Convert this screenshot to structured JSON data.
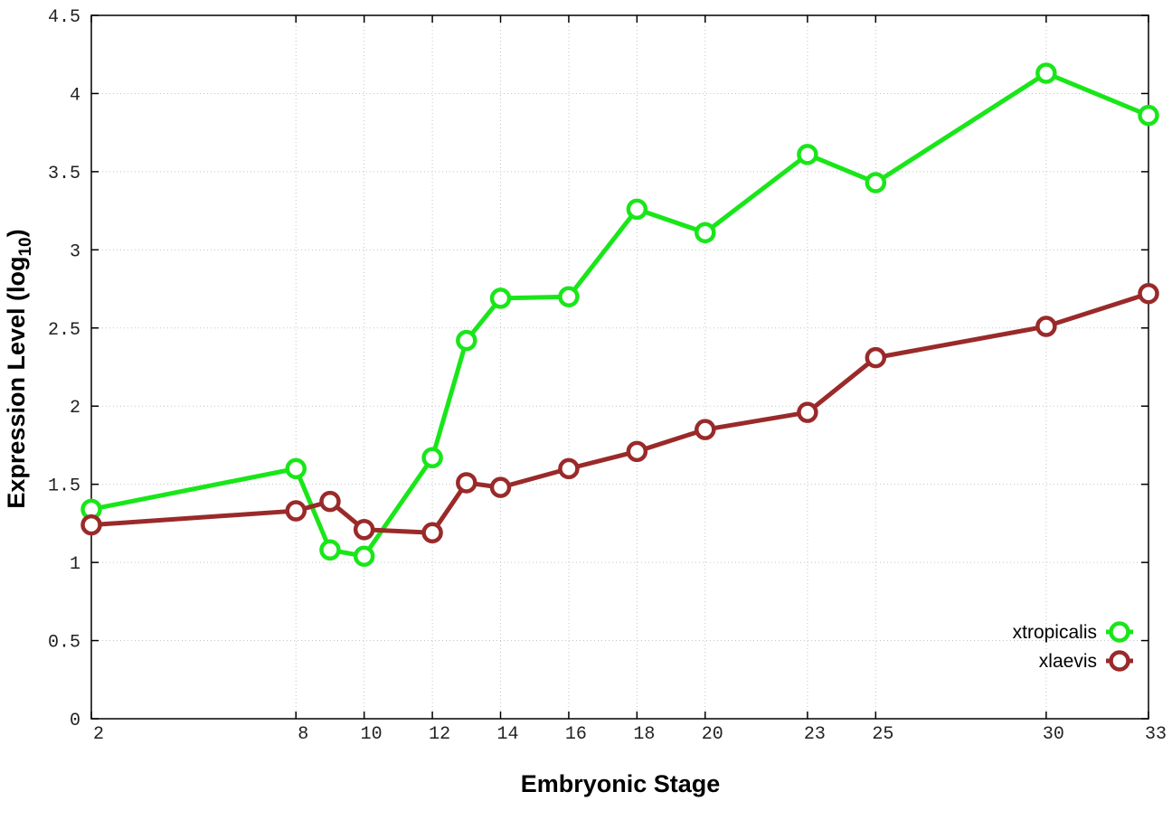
{
  "chart_data": {
    "type": "line",
    "xlabel": "Embryonic Stage",
    "ylabel_main": "Expression Level (log",
    "ylabel_sub": "10",
    "ylabel_close": ")",
    "x_ticks": [
      2,
      8,
      10,
      12,
      14,
      16,
      18,
      20,
      23,
      25,
      30,
      33
    ],
    "y_ticks": [
      "0",
      "0.5",
      "1",
      "1.5",
      "2",
      "2.5",
      "3",
      "3.5",
      "4",
      "4.5"
    ],
    "xlim": [
      2,
      33
    ],
    "ylim": [
      0,
      4.5
    ],
    "grid": true,
    "legend_position": "bottom-right",
    "x": [
      2,
      8,
      9,
      10,
      12,
      13,
      14,
      16,
      18,
      20,
      23,
      25,
      30,
      33
    ],
    "series": [
      {
        "name": "xtropicalis",
        "color": "#19e619",
        "values": [
          1.34,
          1.6,
          1.08,
          1.04,
          1.67,
          2.42,
          2.69,
          2.7,
          3.26,
          3.11,
          3.61,
          3.43,
          4.13,
          3.86
        ]
      },
      {
        "name": "xlaevis",
        "color": "#9a2a2a",
        "values": [
          1.24,
          1.33,
          1.39,
          1.21,
          1.19,
          1.51,
          1.48,
          1.6,
          1.71,
          1.85,
          1.96,
          2.31,
          2.51,
          2.72
        ]
      }
    ]
  }
}
